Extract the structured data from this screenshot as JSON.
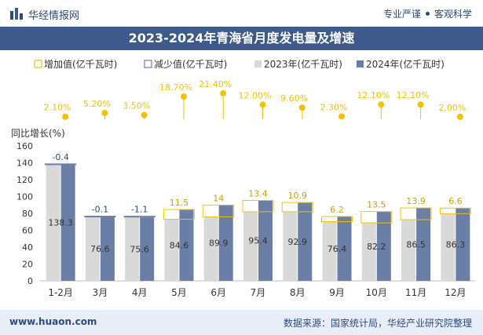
{
  "header": {
    "brand": "华经情报网",
    "slogan_left": "专业严谨",
    "slogan_right": "客观科学"
  },
  "title": "2023-2024年青海省月度发电量及增速",
  "footer": {
    "website": "www.huaon.com",
    "source": "数据来源：国家统计局，华经产业研究院整理"
  },
  "colors": {
    "series_2023": "#d9d9d9",
    "series_2024": "#6a7ea6",
    "increase_box": "#f2c200",
    "decrease_box": "#6a7ea6",
    "growth_marker": "#f2c200",
    "growth_label": "#f2c200",
    "header_bar": "#3d5a8a"
  },
  "chart_data": {
    "type": "bar",
    "title": "2023-2024年青海省月度发电量及增速",
    "ylabel": "同比增长(%)",
    "ylim": [
      0,
      160
    ],
    "yticks": [
      0,
      20,
      40,
      60,
      80,
      100,
      120,
      140,
      160
    ],
    "categories": [
      "1-2月",
      "3月",
      "4月",
      "5月",
      "6月",
      "7月",
      "8月",
      "9月",
      "10月",
      "11月",
      "12月"
    ],
    "legend": [
      {
        "key": "increase",
        "label": "增加值(亿千瓦时)"
      },
      {
        "key": "decrease",
        "label": "减少值(亿千瓦时)"
      },
      {
        "key": "s2023",
        "label": "2023年(亿千瓦时)"
      },
      {
        "key": "s2024",
        "label": "2024年(亿千瓦时)"
      }
    ],
    "series": [
      {
        "name": "2023年(亿千瓦时)",
        "values": [
          138.7,
          76.7,
          76.7,
          73.1,
          75.9,
          82.0,
          82.0,
          70.2,
          68.7,
          72.6,
          79.7
        ]
      },
      {
        "name": "2024年(亿千瓦时)",
        "values": [
          138.3,
          76.6,
          75.6,
          84.6,
          89.9,
          95.4,
          92.9,
          76.4,
          82.2,
          86.5,
          86.3
        ]
      }
    ],
    "value_labels": [
      "138.3",
      "76.6",
      "75.6",
      "84.6",
      "89.9",
      "95.4",
      "92.9",
      "76.4",
      "82.2",
      "86.5",
      "86.3"
    ],
    "changes": [
      -0.4,
      -0.1,
      -1.1,
      11.5,
      14,
      13.4,
      10.9,
      6.2,
      13.5,
      13.9,
      6.6
    ],
    "change_labels": [
      "-0.4",
      "-0.1",
      "-1.1",
      "11.5",
      "14",
      "13.4",
      "10.9",
      "6.2",
      "13.5",
      "13.9",
      "6.6"
    ],
    "growth_rates": [
      2.1,
      5.2,
      3.5,
      18.7,
      21.4,
      12.0,
      9.6,
      2.3,
      12.1,
      12.1,
      2.0
    ],
    "growth_labels": [
      "2.10%",
      "5.20%",
      "3.50%",
      "18.70%",
      "21.40%",
      "12.00%",
      "9.60%",
      "2.30%",
      "12.10%",
      "12.10%",
      "2.00%"
    ]
  }
}
